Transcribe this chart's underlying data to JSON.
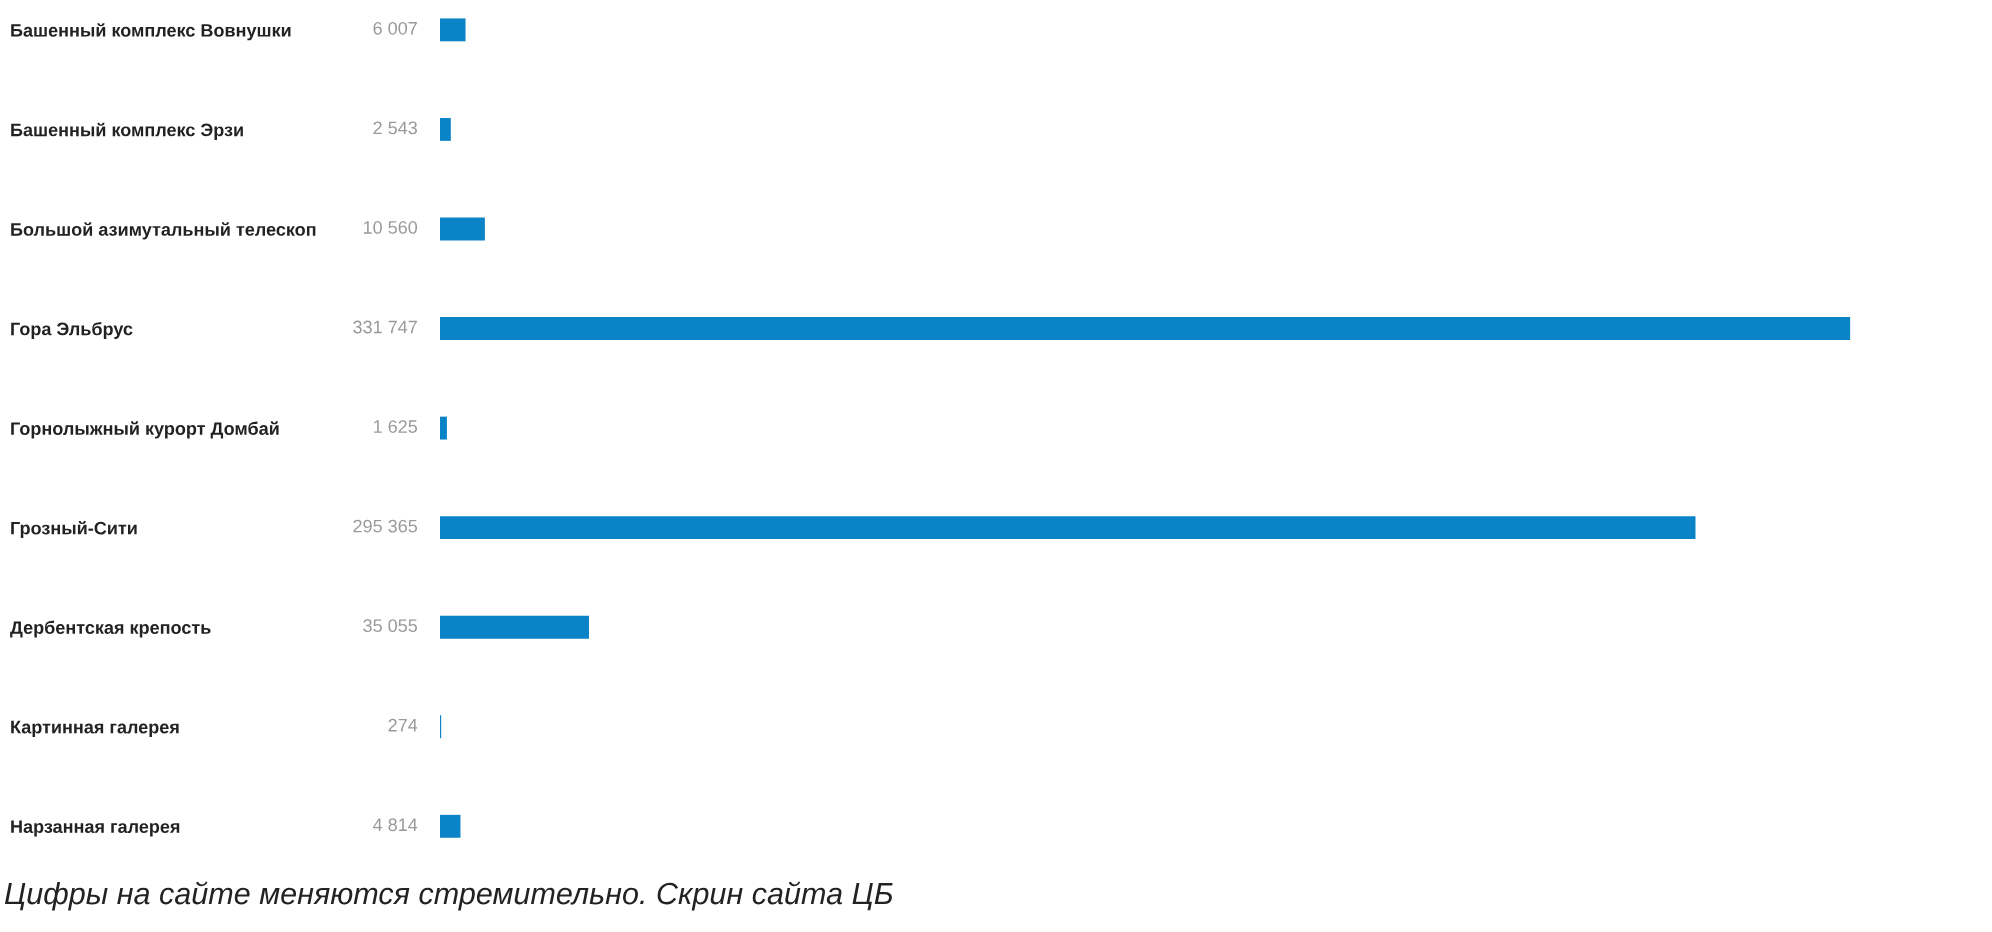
{
  "chart_data": {
    "type": "bar",
    "orientation": "horizontal",
    "categories": [
      "Башенный комплекс Вовнушки",
      "Башенный комплекс Эрзи",
      "Большой азимутальный телескоп",
      "Гора Эльбрус",
      "Горнолыжный курорт Домбай",
      "Грозный-Сити",
      "Дербентская крепость",
      "Картинная галерея",
      "Нарзанная галерея"
    ],
    "values": [
      6007,
      2543,
      10560,
      331747,
      1625,
      295365,
      35055,
      274,
      4814
    ],
    "value_labels": [
      "6 007",
      "2 543",
      "10 560",
      "331 747",
      "1 625",
      "295 365",
      "35 055",
      "274",
      "4 814"
    ],
    "color": "#0a84c6",
    "tick_labels": "y",
    "grid": false,
    "annotations": [
      "Цифры на сайте меняются стремительно. Скрин сайта ЦБ"
    ]
  }
}
